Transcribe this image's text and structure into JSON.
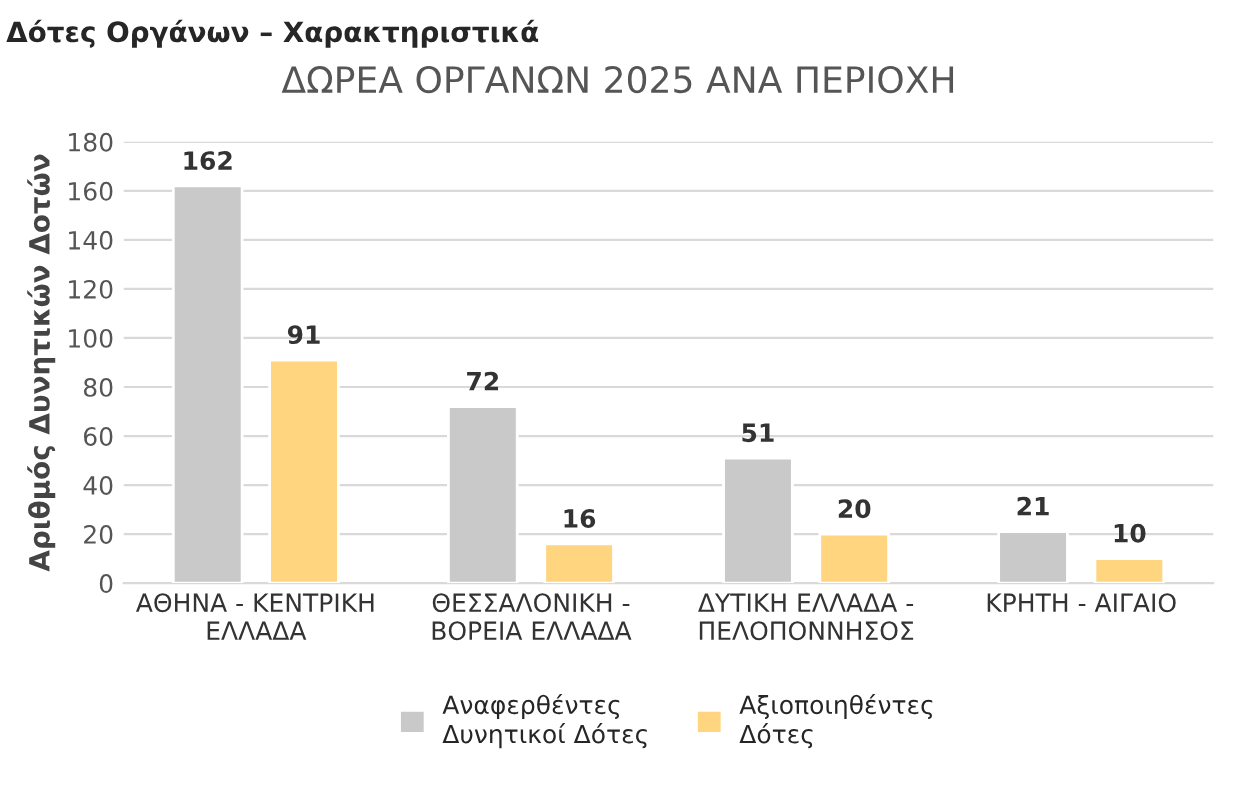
{
  "chart_data": {
    "type": "bar",
    "title": "Δότες Οργάνων – Χαρακτηριστικά",
    "subtitle": "ΔΩΡΕΑ ΟΡΓΑΝΩΝ 2025 ΑΝΑ ΠΕΡΙΟΧΗ",
    "ylabel": "Αριθμός Δυνητικών Δοτών",
    "categories": [
      "ΑΘΗΝΑ - ΚΕΝΤΡΙΚΗ\nΕΛΛΑΔΑ",
      "ΘΕΣΣΑΛΟΝΙΚΗ -\nΒΟΡΕΙΑ ΕΛΛΑΔΑ",
      "ΔΥΤΙΚΗ ΕΛΛΑΔΑ -\nΠΕΛΟΠΟΝΝΗΣΟΣ",
      "ΚΡΗΤΗ - ΑΙΓΑΙΟ"
    ],
    "series": [
      {
        "name": "Αναφερθέντες\nΔυνητικοί Δότες",
        "color": "#c9c9c9",
        "values": [
          162,
          72,
          51,
          21
        ]
      },
      {
        "name": "Αξιοποιηθέντες\nΔότες",
        "color": "#ffd580",
        "values": [
          91,
          16,
          20,
          10
        ]
      }
    ],
    "ylim": [
      0,
      180
    ],
    "yticks": [
      0,
      20,
      40,
      60,
      80,
      100,
      120,
      140,
      160,
      180
    ],
    "grid": "y",
    "legend": "bottom",
    "data_labels": true
  }
}
